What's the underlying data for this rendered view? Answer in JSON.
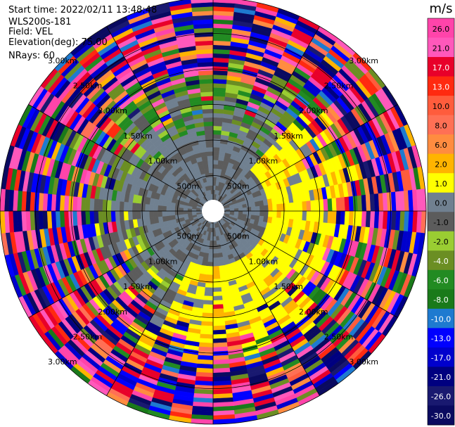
{
  "header": {
    "start_time": "Start time: 2022/02/11 13:48:48",
    "site": "WLS200s-181",
    "field": "Field: VEL",
    "elevation": "Elevation(deg): 75.00",
    "nrays": "NRays: 60"
  },
  "chart_data": {
    "type": "heatmap",
    "projection": "polar-ppi",
    "field": "VEL",
    "rays": 60,
    "range_max_km": 3.0,
    "ring_labels": [
      "500m",
      "1.00km",
      "1.50km",
      "2.00km",
      "2.50km",
      "3.00km"
    ],
    "ring_ranges_km": [
      0.5,
      1.0,
      1.5,
      2.0,
      2.5,
      3.0
    ],
    "colorbar": {
      "unit": "m/s",
      "tick_labels": [
        "26.0",
        "21.0",
        "17.0",
        "13.0",
        "10.0",
        "8.0",
        "6.0",
        "2.0",
        "1.0",
        "0.0",
        "-1.0",
        "-2.0",
        "-4.0",
        "-6.0",
        "-8.0",
        "-10.0",
        "-13.0",
        "-17.0",
        "-21.0",
        "-26.0",
        "-30.0"
      ],
      "bins": [
        {
          "min": 26,
          "max": 30,
          "color": "#ff44aa"
        },
        {
          "min": 21,
          "max": 26,
          "color": "#ff58bb"
        },
        {
          "min": 17,
          "max": 21,
          "color": "#e8002a"
        },
        {
          "min": 13,
          "max": 17,
          "color": "#ff2a10"
        },
        {
          "min": 10,
          "max": 13,
          "color": "#ff5c3c"
        },
        {
          "min": 8,
          "max": 10,
          "color": "#ff7055"
        },
        {
          "min": 6,
          "max": 8,
          "color": "#ff8c40"
        },
        {
          "min": 2,
          "max": 6,
          "color": "#ffb400"
        },
        {
          "min": 1,
          "max": 2,
          "color": "#ffff00"
        },
        {
          "min": 0,
          "max": 1,
          "color": "#708090"
        },
        {
          "min": -1,
          "max": 0,
          "color": "#5c5c5c"
        },
        {
          "min": -2,
          "max": -1,
          "color": "#9acd32"
        },
        {
          "min": -4,
          "max": -2,
          "color": "#6b8e23"
        },
        {
          "min": -6,
          "max": -4,
          "color": "#228b22"
        },
        {
          "min": -8,
          "max": -6,
          "color": "#1a7a1a"
        },
        {
          "min": -10,
          "max": -8,
          "color": "#1e7ad0"
        },
        {
          "min": -13,
          "max": -10,
          "color": "#0000ff"
        },
        {
          "min": -17,
          "max": -13,
          "color": "#0000cd"
        },
        {
          "min": -21,
          "max": -17,
          "color": "#000080"
        },
        {
          "min": -26,
          "max": -21,
          "color": "#191970"
        },
        {
          "min": -30,
          "max": -26,
          "color": "#0a0a60"
        }
      ]
    },
    "grid": true
  }
}
